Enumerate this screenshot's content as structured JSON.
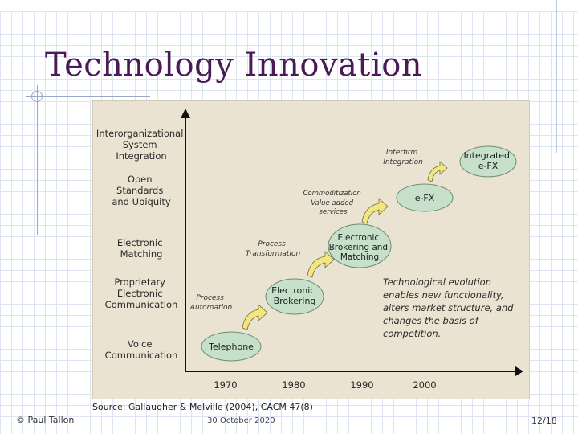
{
  "slide": {
    "title": "Technology Innovation",
    "source": "Source: Gallaugher & Melville (2004), CACM 47(8)",
    "author": "© Paul Tallon",
    "date": "30 October 2020",
    "page": "12/18"
  },
  "figure": {
    "y_levels": [
      [
        "Interorganizational",
        "System",
        "Integration"
      ],
      [
        "Open",
        "Standards",
        "and Ubiquity"
      ],
      [
        "Electronic",
        "Matching"
      ],
      [
        "Proprietary",
        "Electronic",
        "Communication"
      ],
      [
        "Voice",
        "Communication"
      ]
    ],
    "x_ticks": [
      "1970",
      "1980",
      "1990",
      "2000"
    ],
    "stages": [
      {
        "lines": [
          "Telephone"
        ]
      },
      {
        "lines": [
          "Electronic",
          "Brokering"
        ]
      },
      {
        "lines": [
          "Electronic",
          "Brokering and",
          "Matching"
        ]
      },
      {
        "lines": [
          "e-FX"
        ]
      },
      {
        "lines": [
          "Integrated",
          "e-FX"
        ]
      }
    ],
    "transitions": [
      {
        "lines": [
          "Process",
          "Automation"
        ]
      },
      {
        "lines": [
          "Process",
          "Transformation"
        ]
      },
      {
        "lines": [
          "Commoditization",
          "Value added",
          "services"
        ]
      },
      {
        "lines": [
          "Interfirm",
          "Integration"
        ]
      }
    ],
    "note": [
      "Technological evolution",
      "enables new functionality,",
      "alters market structure, and",
      "changes the basis of",
      "competition."
    ],
    "colors": {
      "panel": "#eae3d1",
      "stage_fill": "#c7e0c9",
      "arrow_fill": "#f2e680",
      "axis": "#111111",
      "title": "#4a1a56"
    }
  }
}
